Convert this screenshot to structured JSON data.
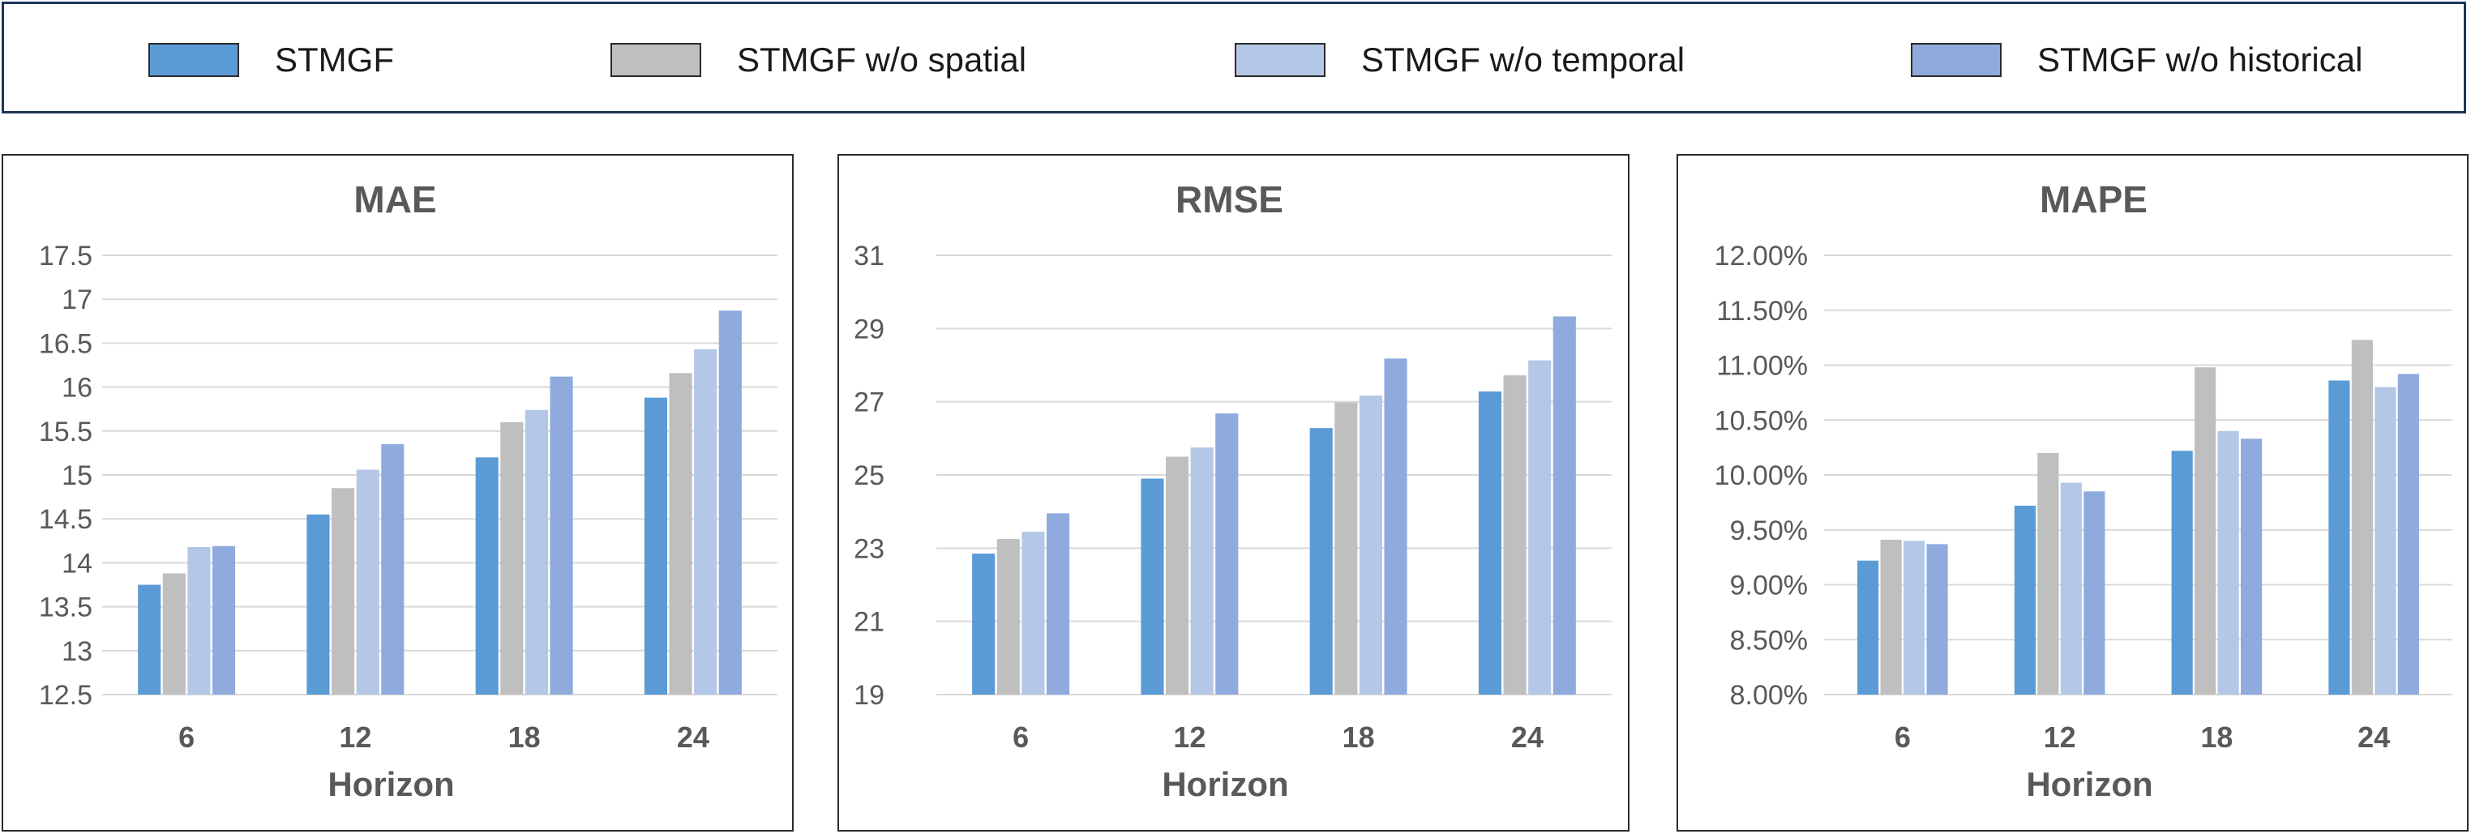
{
  "colors": {
    "STMGF": "#5b9bd5",
    "STMGF w/o spatial": "#bfbfbf",
    "STMGF w/o temporal": "#b4c7e7",
    "STMGF w/o historical": "#8faadc"
  },
  "legend": [
    {
      "label": "STMGF",
      "color": "#5b9bd5"
    },
    {
      "label": "STMGF w/o spatial",
      "color": "#bfbfbf"
    },
    {
      "label": "STMGF w/o temporal",
      "color": "#b4c7e7"
    },
    {
      "label": "STMGF w/o historical",
      "color": "#8faadc"
    }
  ],
  "chart_data": [
    {
      "type": "bar",
      "title": "MAE",
      "xlabel": "Horizon",
      "ylabel": "",
      "categories": [
        "6",
        "12",
        "18",
        "24"
      ],
      "ylim": [
        12.5,
        17.5
      ],
      "yticks": [
        12.5,
        13,
        13.5,
        14,
        14.5,
        15,
        15.5,
        16,
        16.5,
        17,
        17.5
      ],
      "ytick_labels": [
        "12.5",
        "13",
        "13.5",
        "14",
        "14.5",
        "15",
        "15.5",
        "16",
        "16.5",
        "17",
        "17.5"
      ],
      "grid": true,
      "legend": "top",
      "series": [
        {
          "name": "STMGF",
          "values": [
            13.75,
            14.55,
            15.2,
            15.88
          ]
        },
        {
          "name": "STMGF w/o spatial",
          "values": [
            13.88,
            14.85,
            15.6,
            16.16
          ]
        },
        {
          "name": "STMGF w/o temporal",
          "values": [
            14.18,
            15.06,
            15.74,
            16.43
          ]
        },
        {
          "name": "STMGF w/o historical",
          "values": [
            14.19,
            15.35,
            16.12,
            16.87
          ]
        }
      ]
    },
    {
      "type": "bar",
      "title": "RMSE",
      "xlabel": "Horizon",
      "ylabel": "",
      "categories": [
        "6",
        "12",
        "18",
        "24"
      ],
      "ylim": [
        19,
        31
      ],
      "yticks": [
        19,
        21,
        23,
        25,
        27,
        29,
        31
      ],
      "ytick_labels": [
        "19",
        "21",
        "23",
        "25",
        "27",
        "29",
        "31"
      ],
      "grid": true,
      "legend": "top",
      "series": [
        {
          "name": "STMGF",
          "values": [
            22.85,
            24.9,
            26.28,
            27.28
          ]
        },
        {
          "name": "STMGF w/o spatial",
          "values": [
            23.25,
            25.5,
            26.98,
            27.72
          ]
        },
        {
          "name": "STMGF w/o temporal",
          "values": [
            23.45,
            25.75,
            27.17,
            28.13
          ]
        },
        {
          "name": "STMGF w/o historical",
          "values": [
            23.95,
            26.68,
            28.18,
            29.33
          ]
        }
      ]
    },
    {
      "type": "bar",
      "title": "MAPE",
      "xlabel": "Horizon",
      "ylabel": "",
      "categories": [
        "6",
        "12",
        "18",
        "24"
      ],
      "ylim": [
        8.0,
        12.0
      ],
      "yticks": [
        8.0,
        8.5,
        9.0,
        9.5,
        10.0,
        10.5,
        11.0,
        11.5,
        12.0
      ],
      "ytick_labels": [
        "8.00%",
        "8.50%",
        "9.00%",
        "9.50%",
        "10.00%",
        "10.50%",
        "11.00%",
        "11.50%",
        "12.00%"
      ],
      "grid": true,
      "legend": "top",
      "series": [
        {
          "name": "STMGF",
          "values": [
            9.22,
            9.72,
            10.22,
            10.86
          ]
        },
        {
          "name": "STMGF w/o spatial",
          "values": [
            9.41,
            10.2,
            10.98,
            11.23
          ]
        },
        {
          "name": "STMGF w/o temporal",
          "values": [
            9.4,
            9.93,
            10.4,
            10.8
          ]
        },
        {
          "name": "STMGF w/o historical",
          "values": [
            9.37,
            9.85,
            10.33,
            10.92
          ]
        }
      ]
    }
  ]
}
